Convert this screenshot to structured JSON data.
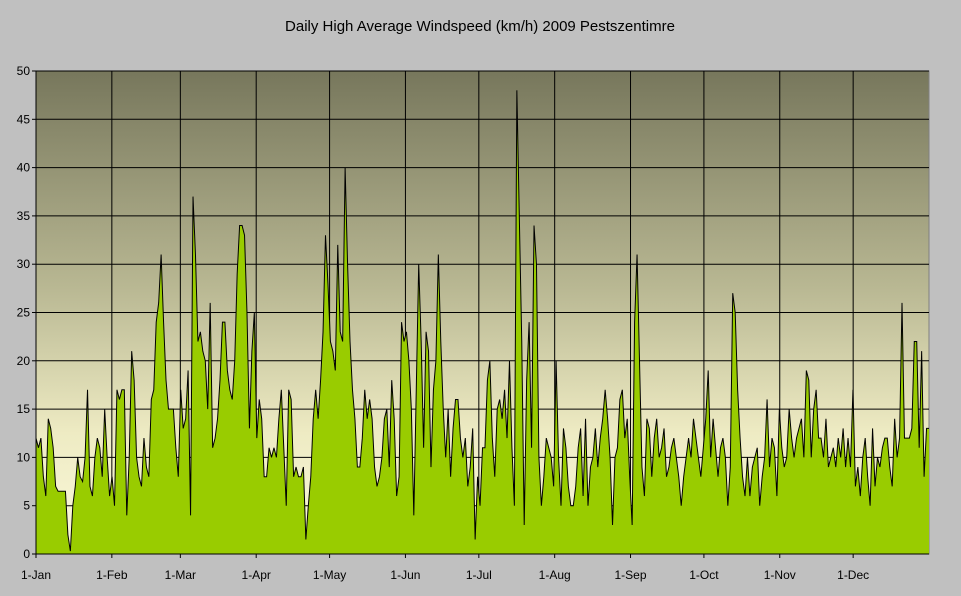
{
  "chart_data": {
    "type": "area",
    "title": "Daily High Average Windspeed (km/h) 2009 Pestszentimre",
    "xlabel": "",
    "ylabel": "",
    "ylim": [
      0,
      50
    ],
    "y_ticks": [
      0,
      5,
      10,
      15,
      20,
      25,
      30,
      35,
      40,
      45,
      50
    ],
    "x_ticks": [
      {
        "label": "1-Jan",
        "day": 0
      },
      {
        "label": "1-Feb",
        "day": 31
      },
      {
        "label": "1-Mar",
        "day": 59
      },
      {
        "label": "1-Apr",
        "day": 90
      },
      {
        "label": "1-May",
        "day": 120
      },
      {
        "label": "1-Jun",
        "day": 151
      },
      {
        "label": "1-Jul",
        "day": 181
      },
      {
        "label": "1-Aug",
        "day": 212
      },
      {
        "label": "1-Sep",
        "day": 243
      },
      {
        "label": "1-Oct",
        "day": 273
      },
      {
        "label": "1-Nov",
        "day": 304
      },
      {
        "label": "1-Dec",
        "day": 334
      }
    ],
    "days_in_year": 365,
    "grid": true,
    "colors": {
      "fill": "#99cc00",
      "line": "#000000",
      "plot_top": "#77775c",
      "plot_bottom": "#f8f6d6",
      "background": "#c0c0c0"
    },
    "values": [
      12,
      11,
      12,
      8,
      6,
      14,
      13,
      11,
      7,
      6.5,
      6.5,
      6.5,
      6.5,
      2,
      0.3,
      5,
      7,
      10,
      8,
      7.5,
      10,
      17,
      7,
      6,
      10,
      12,
      11,
      8,
      15,
      10,
      6,
      8,
      5,
      17,
      16,
      17,
      17,
      4,
      10,
      21,
      18,
      10,
      8,
      7,
      12,
      9,
      8,
      16,
      17,
      24,
      26,
      31,
      24,
      18,
      15,
      15,
      15,
      11,
      8,
      17,
      13,
      14,
      19,
      4,
      37,
      31,
      22,
      23,
      21,
      20,
      15,
      26,
      11,
      12,
      14,
      18,
      24,
      24,
      19,
      17,
      16,
      20,
      29,
      34,
      34,
      33,
      25,
      13,
      21,
      25,
      12,
      16,
      14,
      8,
      8,
      11,
      10,
      11,
      10,
      14,
      17,
      11,
      5,
      17,
      16,
      8,
      9,
      8,
      8,
      9,
      1.5,
      5,
      8,
      14,
      17,
      14,
      18,
      23,
      33,
      28,
      22,
      21,
      19,
      32,
      23,
      22,
      40,
      30,
      22,
      17,
      14,
      9,
      9,
      12,
      17,
      14,
      16,
      14,
      9,
      7,
      8,
      10,
      14,
      15,
      9,
      18,
      14,
      6,
      8,
      24,
      22,
      23,
      20,
      15,
      4,
      17,
      30,
      22,
      11,
      23,
      21,
      9,
      17,
      20,
      31,
      22,
      15,
      10,
      15,
      8,
      13,
      16,
      16,
      12,
      10,
      12,
      7,
      9,
      13,
      1.5,
      8,
      5,
      11,
      11,
      18,
      20,
      12,
      8,
      15,
      16,
      14,
      17,
      12,
      20,
      11,
      5,
      48,
      35,
      22,
      3,
      18,
      24,
      11,
      34,
      30,
      10,
      5,
      8,
      12,
      11,
      10,
      7,
      20,
      10,
      5,
      13,
      11,
      7,
      5,
      5,
      7,
      11,
      13,
      6,
      14,
      5,
      9,
      10,
      13,
      9,
      12,
      14,
      17,
      14,
      10,
      3,
      10,
      11,
      16,
      17,
      12,
      14,
      8,
      3,
      24,
      31,
      20,
      9,
      6,
      14,
      13,
      8,
      12,
      14,
      10,
      11,
      13,
      8,
      9,
      11,
      12,
      10,
      8,
      5,
      8,
      10,
      12,
      10,
      14,
      12,
      10,
      8,
      11,
      14,
      19,
      10,
      14,
      11,
      8,
      11,
      12,
      10,
      5,
      9,
      27,
      25,
      17,
      12,
      8,
      6,
      10,
      6,
      9,
      10,
      11,
      5,
      8,
      10,
      16,
      9,
      12,
      11,
      6,
      15,
      11,
      9,
      10,
      15,
      12,
      10,
      12,
      13,
      14,
      10,
      19,
      18,
      10,
      15,
      17,
      12,
      12,
      10,
      14,
      9,
      10,
      11,
      9,
      12,
      10,
      13,
      9,
      12,
      9,
      17,
      7,
      9,
      6,
      10,
      12,
      8,
      5,
      13,
      7,
      10,
      9,
      11,
      12,
      12,
      9,
      7,
      14,
      10,
      12,
      26,
      12,
      12,
      12,
      13,
      22,
      22,
      11,
      21,
      8,
      13,
      13
    ]
  }
}
